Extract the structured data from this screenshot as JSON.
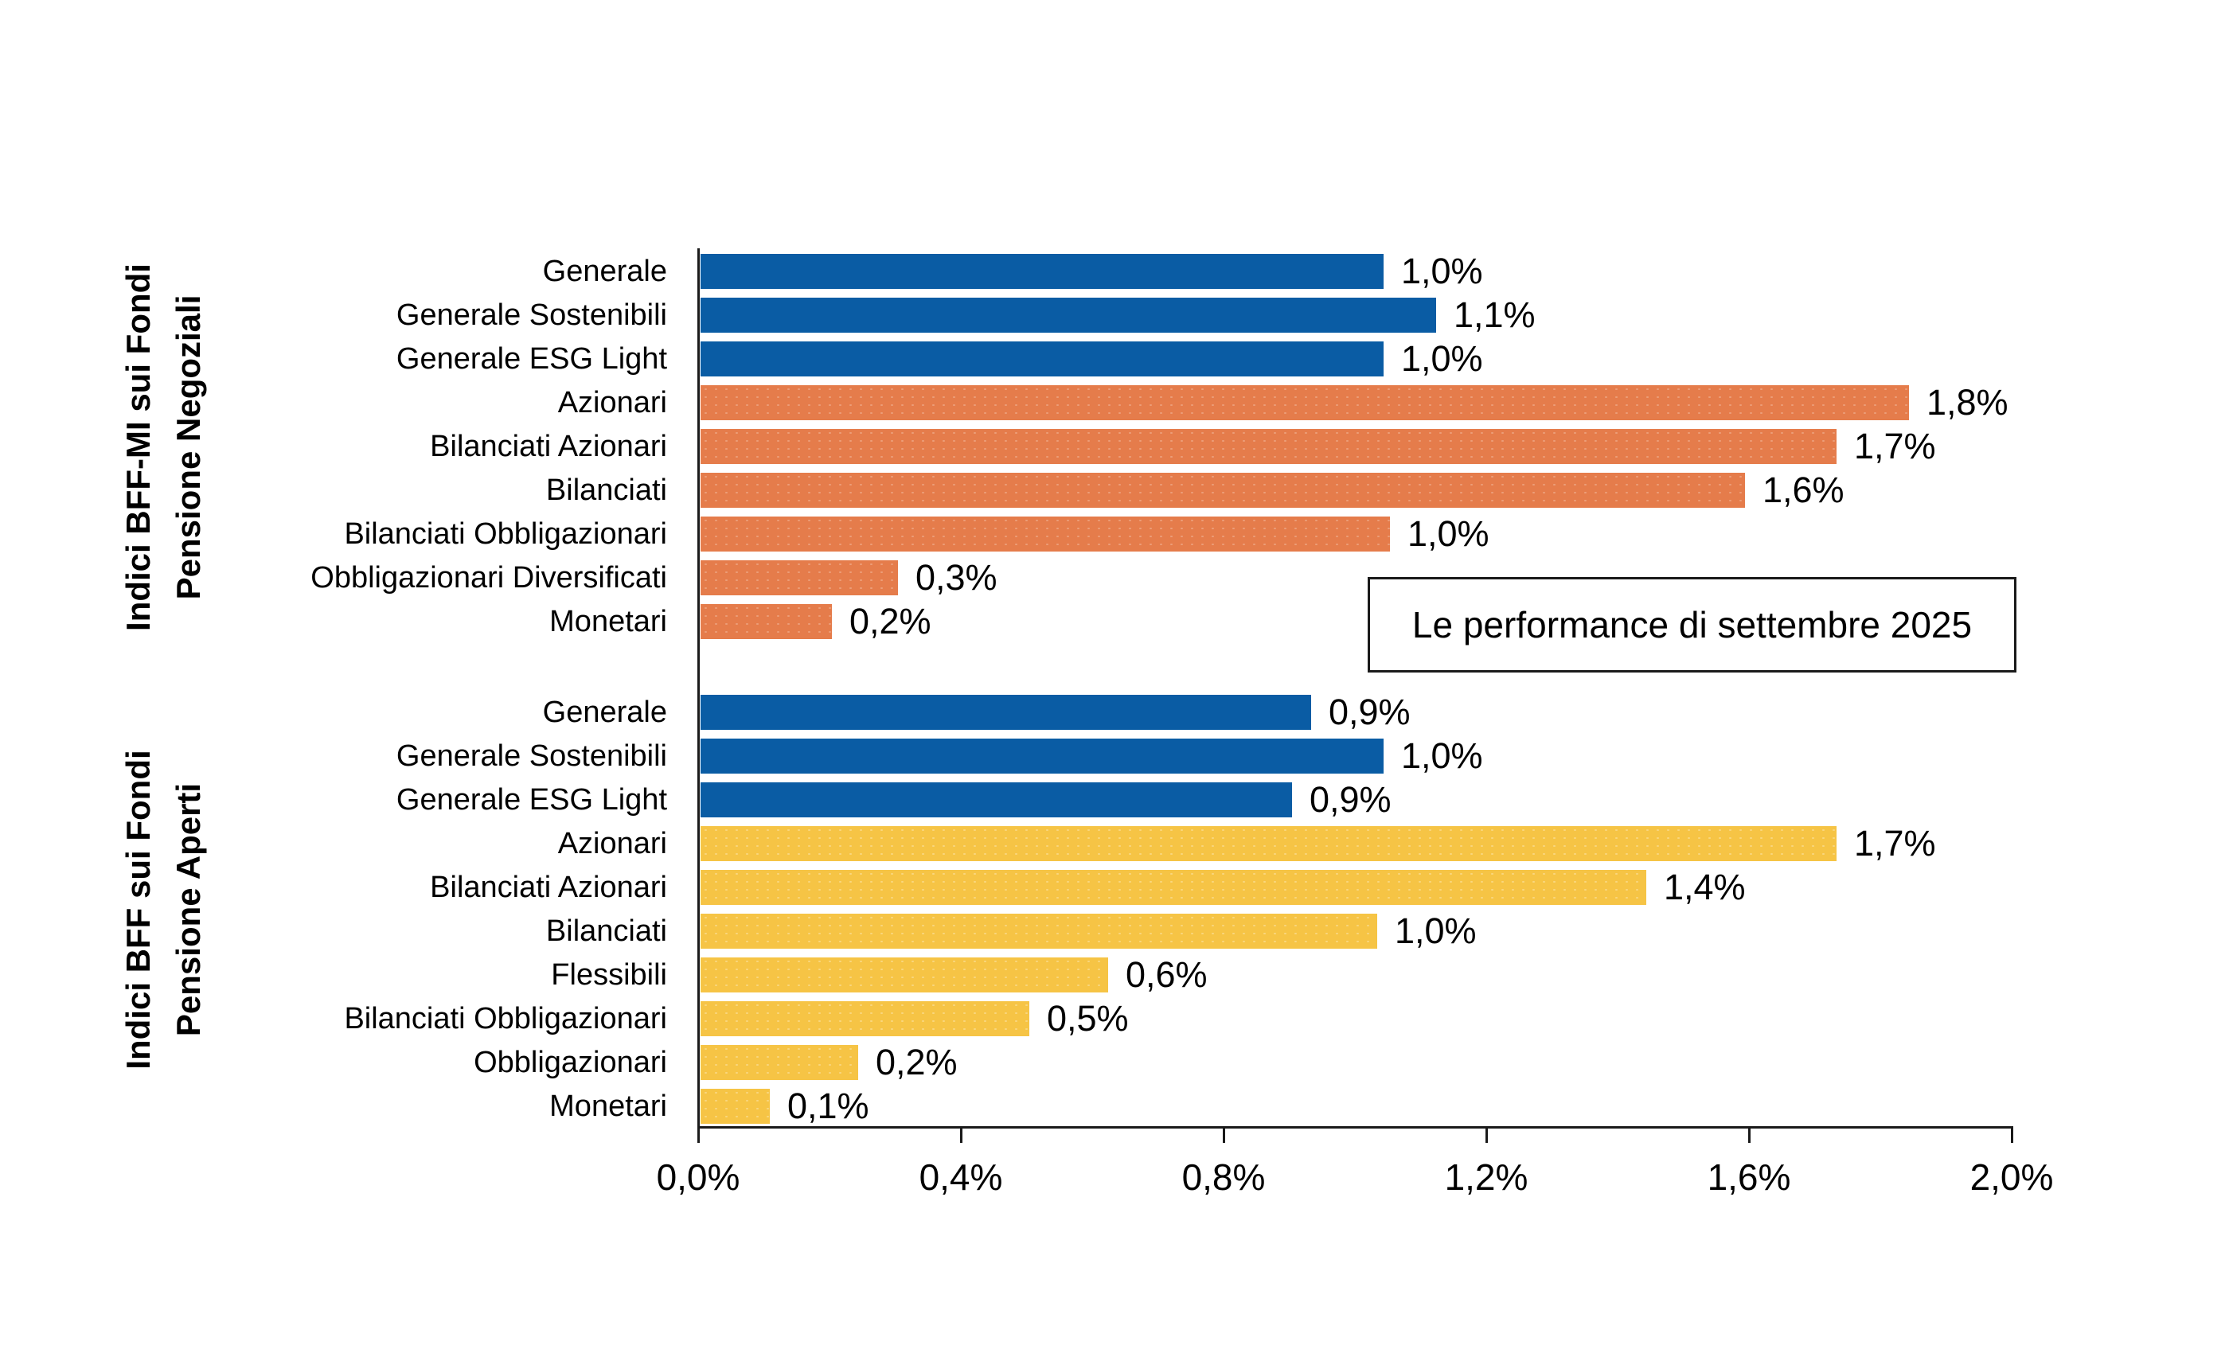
{
  "annotation": "Le performance di settembre 2025",
  "palette": {
    "blue": "#0a5ca4",
    "orange": "#e57c4b",
    "yellow": "#f6c445",
    "axis": "#1a1a1a"
  },
  "chart_data": {
    "type": "bar",
    "orientation": "horizontal",
    "value_unit": "percent",
    "xlim": [
      0.0,
      2.0
    ],
    "x_ticks": [
      0.0,
      0.4,
      0.8,
      1.2,
      1.6,
      2.0
    ],
    "x_tick_labels": [
      "0,0%",
      "0,4%",
      "0,8%",
      "1,2%",
      "1,6%",
      "2,0%"
    ],
    "grid": false,
    "annotation": "Le performance di settembre 2025",
    "groups": [
      {
        "label_lines": [
          "Indici BFF-MI sui Fondi",
          "Pensione Negoziali"
        ],
        "items": [
          {
            "category": "Generale",
            "value": 1.0,
            "label": "1,0%",
            "color": "blue",
            "bar_value_precise": 1.04
          },
          {
            "category": "Generale Sostenibili",
            "value": 1.1,
            "label": "1,1%",
            "color": "blue",
            "bar_value_precise": 1.12
          },
          {
            "category": "Generale ESG Light",
            "value": 1.0,
            "label": "1,0%",
            "color": "blue",
            "bar_value_precise": 1.04
          },
          {
            "category": "Azionari",
            "value": 1.8,
            "label": "1,8%",
            "color": "orange",
            "bar_value_precise": 1.84
          },
          {
            "category": "Bilanciati Azionari",
            "value": 1.7,
            "label": "1,7%",
            "color": "orange",
            "bar_value_precise": 1.73
          },
          {
            "category": "Bilanciati",
            "value": 1.6,
            "label": "1,6%",
            "color": "orange",
            "bar_value_precise": 1.59
          },
          {
            "category": "Bilanciati Obbligazionari",
            "value": 1.0,
            "label": "1,0%",
            "color": "orange",
            "bar_value_precise": 1.05
          },
          {
            "category": "Obbligazionari Diversificati",
            "value": 0.3,
            "label": "0,3%",
            "color": "orange",
            "bar_value_precise": 0.3
          },
          {
            "category": "Monetari",
            "value": 0.2,
            "label": "0,2%",
            "color": "orange",
            "bar_value_precise": 0.2
          }
        ]
      },
      {
        "label_lines": [
          "Indici BFF sui Fondi",
          "Pensione Aperti"
        ],
        "items": [
          {
            "category": "Generale",
            "value": 0.9,
            "label": "0,9%",
            "color": "blue",
            "bar_value_precise": 0.93
          },
          {
            "category": "Generale Sostenibili",
            "value": 1.0,
            "label": "1,0%",
            "color": "blue",
            "bar_value_precise": 1.04
          },
          {
            "category": "Generale ESG Light",
            "value": 0.9,
            "label": "0,9%",
            "color": "blue",
            "bar_value_precise": 0.9
          },
          {
            "category": "Azionari",
            "value": 1.7,
            "label": "1,7%",
            "color": "yellow",
            "bar_value_precise": 1.73
          },
          {
            "category": "Bilanciati Azionari",
            "value": 1.4,
            "label": "1,4%",
            "color": "yellow",
            "bar_value_precise": 1.44
          },
          {
            "category": "Bilanciati",
            "value": 1.0,
            "label": "1,0%",
            "color": "yellow",
            "bar_value_precise": 1.03
          },
          {
            "category": "Flessibili",
            "value": 0.6,
            "label": "0,6%",
            "color": "yellow",
            "bar_value_precise": 0.62
          },
          {
            "category": "Bilanciati Obbligazionari",
            "value": 0.5,
            "label": "0,5%",
            "color": "yellow",
            "bar_value_precise": 0.5
          },
          {
            "category": "Obbligazionari",
            "value": 0.2,
            "label": "0,2%",
            "color": "yellow",
            "bar_value_precise": 0.24
          },
          {
            "category": "Monetari",
            "value": 0.1,
            "label": "0,1%",
            "color": "yellow",
            "bar_value_precise": 0.105
          }
        ]
      }
    ]
  }
}
